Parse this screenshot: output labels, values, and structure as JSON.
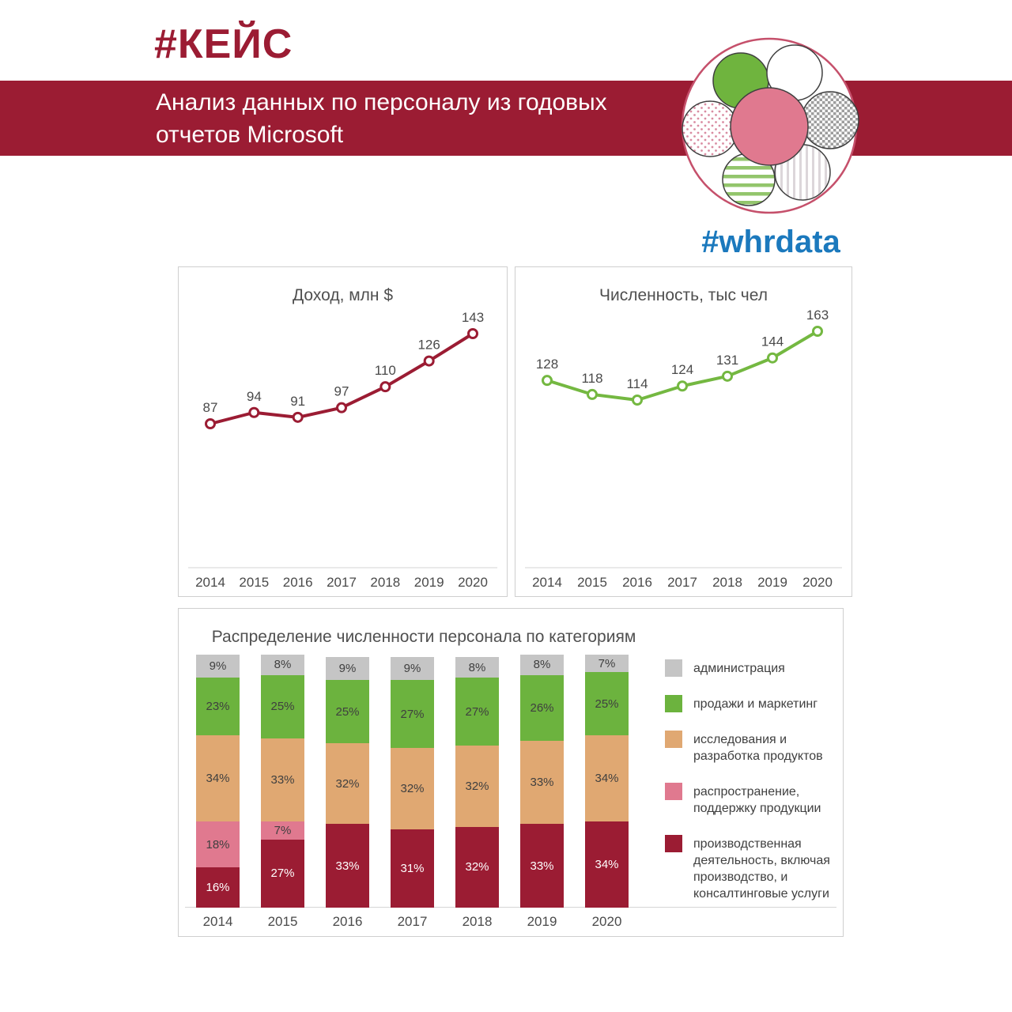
{
  "header": {
    "hashtag": "#КЕЙС",
    "banner_text": "Анализ данных по персоналу из годовых отчетов Microsoft"
  },
  "brand": {
    "hashtag": "#whrdata",
    "logo": "flower-of-seven-circles"
  },
  "colors": {
    "maroon": "#9B1C33",
    "green_line": "#74B841",
    "green_bar": "#6CB33E",
    "tan": "#E0A872",
    "pink": "#E0798F",
    "gray": "#C5C5C5",
    "blue": "#1B79BD",
    "axis_text": "#4A4A4A"
  },
  "chart_data": [
    {
      "type": "line",
      "title": "Доход, млн $",
      "x": [
        "2014",
        "2015",
        "2016",
        "2017",
        "2018",
        "2019",
        "2020"
      ],
      "values": [
        87,
        94,
        91,
        97,
        110,
        126,
        143
      ],
      "color": "#9B1C33",
      "marker": "open-circle",
      "grid": false,
      "value_labels": true,
      "legend_position": "none"
    },
    {
      "type": "line",
      "title": "Численность, тыс чел",
      "x": [
        "2014",
        "2015",
        "2016",
        "2017",
        "2018",
        "2019",
        "2020"
      ],
      "values": [
        128,
        118,
        114,
        124,
        131,
        144,
        163
      ],
      "color": "#74B841",
      "marker": "open-circle",
      "grid": false,
      "value_labels": true,
      "legend_position": "none"
    },
    {
      "type": "bar",
      "stacked": true,
      "title": "Распределение  численности персонала по категориям",
      "categories": [
        "2014",
        "2015",
        "2016",
        "2017",
        "2018",
        "2019",
        "2020"
      ],
      "unit": "%",
      "ylim": [
        0,
        100
      ],
      "grid": false,
      "legend_position": "right",
      "series": [
        {
          "name": "производственная деятельность, включая производство,  и консалтинговые услуги",
          "color": "#9B1C33",
          "label_color": "#FFFFFF",
          "values": [
            16,
            27,
            33,
            31,
            32,
            33,
            34
          ]
        },
        {
          "name": "распространение, поддержку продукции",
          "color": "#E0798F",
          "label_color": "#3F3F3F",
          "values": [
            18,
            7,
            0,
            0,
            0,
            0,
            0
          ]
        },
        {
          "name": "исследования и разработка продуктов",
          "color": "#E0A872",
          "label_color": "#3F3F3F",
          "values": [
            34,
            33,
            32,
            32,
            32,
            33,
            34
          ]
        },
        {
          "name": "продажи и маркетинг",
          "color": "#6CB33E",
          "label_color": "#3F3F3F",
          "values": [
            23,
            25,
            25,
            27,
            27,
            26,
            25
          ]
        },
        {
          "name": "администрация",
          "color": "#C5C5C5",
          "label_color": "#3F3F3F",
          "values": [
            9,
            8,
            9,
            9,
            8,
            8,
            7
          ]
        }
      ]
    }
  ]
}
